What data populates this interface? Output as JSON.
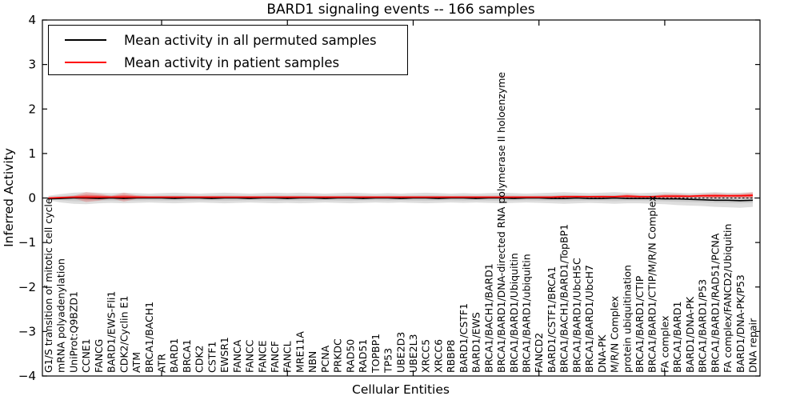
{
  "chart_data": {
    "type": "line",
    "title": "BARD1 signaling events -- 166 samples",
    "xlabel": "Cellular Entities",
    "ylabel": "Inferred Activity",
    "ylim": [
      -4,
      4
    ],
    "yticks": [
      4,
      3,
      2,
      1,
      0,
      -1,
      -2,
      -3,
      -4
    ],
    "xtick_indices": [
      9,
      19,
      29,
      39,
      49
    ],
    "grid": false,
    "legend_position": "upper left",
    "zero_reference_line": 0,
    "categories": [
      "G1/S transition of mitotic cell cycle",
      "mRNA polyadenylation",
      "UniProt:Q9BZD1",
      "CCNE1",
      "FANCG",
      "BARD1/EWS-Fli1",
      "CDK2/Cyclin E1",
      "ATM",
      "BRCA1/BACH1",
      "ATR",
      "BARD1",
      "BRCA1",
      "CDK2",
      "CSTF1",
      "EWSR1",
      "FANCA",
      "FANCC",
      "FANCE",
      "FANCF",
      "FANCL",
      "MRE11A",
      "NBN",
      "PCNA",
      "PRKDC",
      "RAD50",
      "RAD51",
      "TOPBP1",
      "TP53",
      "UBE2D3",
      "UBE2L3",
      "XRCC5",
      "XRCC6",
      "RBBP8",
      "BARD1/CSTF1",
      "BARD1/EWS",
      "BRCA1/BACH1/BARD1",
      "BRCA1/BARD1/DNA-directed RNA polymerase II holoenzyme",
      "BRCA1/BARD1/Ubiquitin",
      "BRCA1/BARD1/ubiquitin",
      "FANCD2",
      "BARD1/CSTF1/BRCA1",
      "BRCA1/BACH1/BARD1/TopBP1",
      "BRCA1/BARD1/UbcH5C",
      "BRCA1/BARD1/UbcH7",
      "DNA-PK",
      "M/R/N Complex",
      "protein ubiquitination",
      "BRCA1/BARD1/CTIP",
      "BRCA1/BARD1/CTIP/M/R/N Complex",
      "FA complex",
      "BRCA1/BARD1",
      "BARD1/DNA-PK",
      "BRCA1/BARD1/P53",
      "BRCA1/BARD1/RAD51/PCNA",
      "FA complex/FANCD2/Ubiquitin",
      "BARD1/DNA-PK/P53",
      "DNA repair"
    ],
    "series": [
      {
        "name": "Mean activity in all permuted samples",
        "color": "#000000",
        "values": [
          -0.02,
          -0.01,
          0,
          0,
          -0.01,
          0,
          -0.01,
          0,
          0,
          0,
          -0.01,
          0,
          0,
          -0.01,
          0,
          0,
          -0.01,
          0,
          0,
          -0.01,
          0,
          0,
          -0.01,
          0,
          0,
          -0.01,
          0,
          0,
          -0.01,
          0,
          0,
          -0.01,
          0,
          0,
          -0.01,
          0,
          0,
          -0.01,
          0,
          0,
          -0.01,
          -0.01,
          0,
          -0.01,
          -0.01,
          0,
          -0.01,
          -0.01,
          -0.01,
          -0.02,
          -0.02,
          -0.03,
          -0.04,
          -0.05,
          -0.05,
          -0.06,
          -0.05
        ]
      },
      {
        "name": "Mean activity in patient samples",
        "color": "#ff0000",
        "values": [
          0,
          0.01,
          0.02,
          0.02,
          0.02,
          0.02,
          0.02,
          0.02,
          0.02,
          0.02,
          0.02,
          0.02,
          0.02,
          0.02,
          0.02,
          0.02,
          0.02,
          0.02,
          0.02,
          0.02,
          0.02,
          0.02,
          0.02,
          0.02,
          0.02,
          0.02,
          0.02,
          0.02,
          0.02,
          0.02,
          0.02,
          0.02,
          0.02,
          0.02,
          0.02,
          0.02,
          0.02,
          0.02,
          0.02,
          0.02,
          0.02,
          0.03,
          0.03,
          0.03,
          0.03,
          0.03,
          0.04,
          0.03,
          0.03,
          0.04,
          0.04,
          0.04,
          0.05,
          0.05,
          0.05,
          0.05,
          0.06
        ]
      }
    ],
    "bands": {
      "permuted_range": {
        "color": "#000000",
        "upper": [
          0.05,
          0.09,
          0.12,
          0.13,
          0.12,
          0.11,
          0.12,
          0.11,
          0.1,
          0.11,
          0.12,
          0.11,
          0.1,
          0.11,
          0.12,
          0.11,
          0.1,
          0.11,
          0.12,
          0.11,
          0.12,
          0.11,
          0.1,
          0.11,
          0.12,
          0.11,
          0.1,
          0.11,
          0.1,
          0.11,
          0.12,
          0.11,
          0.1,
          0.11,
          0.1,
          0.11,
          0.12,
          0.11,
          0.1,
          0.11,
          0.12,
          0.13,
          0.12,
          0.11,
          0.12,
          0.13,
          0.12,
          0.11,
          0.12,
          0.13,
          0.12,
          0.11,
          0.12,
          0.13,
          0.12,
          0.12,
          0.13
        ],
        "lower": [
          -0.05,
          -0.1,
          -0.13,
          -0.14,
          -0.12,
          -0.11,
          -0.12,
          -0.11,
          -0.1,
          -0.11,
          -0.12,
          -0.11,
          -0.1,
          -0.11,
          -0.12,
          -0.11,
          -0.1,
          -0.11,
          -0.12,
          -0.11,
          -0.12,
          -0.11,
          -0.1,
          -0.11,
          -0.12,
          -0.11,
          -0.1,
          -0.11,
          -0.1,
          -0.11,
          -0.12,
          -0.11,
          -0.1,
          -0.11,
          -0.1,
          -0.11,
          -0.12,
          -0.11,
          -0.1,
          -0.11,
          -0.12,
          -0.13,
          -0.12,
          -0.11,
          -0.12,
          -0.13,
          -0.12,
          -0.12,
          -0.13,
          -0.14,
          -0.16,
          -0.17,
          -0.18,
          -0.2,
          -0.21,
          -0.22,
          -0.2
        ]
      },
      "patient_range": {
        "color": "#ff0000",
        "half_width": [
          0.01,
          0.02,
          0.03,
          0.11,
          0.08,
          0.03,
          0.1,
          0.04,
          0.02,
          0.02,
          0.02,
          0.02,
          0.02,
          0.02,
          0.02,
          0.02,
          0.02,
          0.02,
          0.02,
          0.02,
          0.02,
          0.02,
          0.02,
          0.02,
          0.02,
          0.02,
          0.02,
          0.02,
          0.02,
          0.02,
          0.02,
          0.02,
          0.02,
          0.02,
          0.02,
          0.02,
          0.02,
          0.02,
          0.02,
          0.02,
          0.02,
          0.03,
          0.03,
          0.02,
          0.03,
          0.02,
          0.05,
          0.03,
          0.02,
          0.05,
          0.05,
          0.03,
          0.04,
          0.06,
          0.04,
          0.05,
          0.07
        ]
      }
    }
  }
}
